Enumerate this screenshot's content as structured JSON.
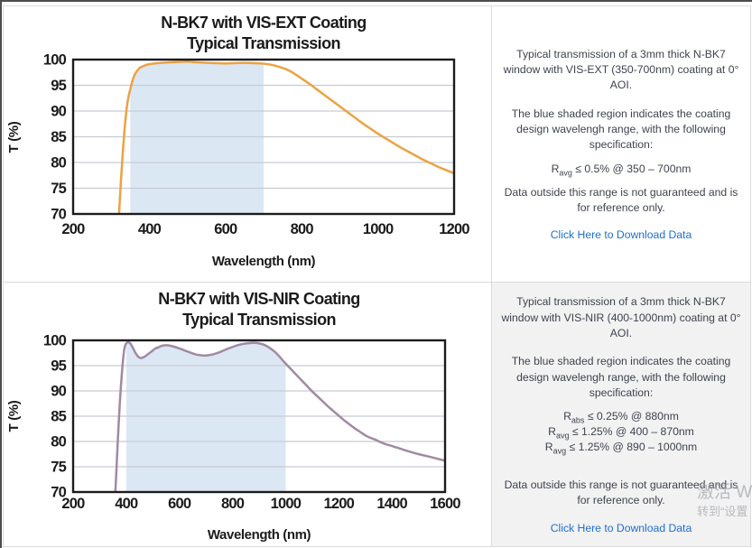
{
  "colors": {
    "band": "#dce7f4",
    "grid_line": "#c7ccd3",
    "frame": "#1c1c1c",
    "vis_ext_line": "#eda243",
    "vis_nir_line": "#a18aa3",
    "link": "#1d6fd2",
    "panel_gray_bg": "#f2f2f3"
  },
  "chart_data": [
    {
      "type": "line",
      "title_line1": "N-BK7 with VIS-EXT Coating",
      "title_line2": "Typical Transmission",
      "xlabel": "Wavelength (nm)",
      "ylabel": "T (%)",
      "series_name": "VIS-EXT coated N-BK7 transmission",
      "xlim": [
        200,
        1200
      ],
      "ylim": [
        70,
        100
      ],
      "x_ticks": [
        200,
        400,
        600,
        800,
        1000,
        1200
      ],
      "y_ticks": [
        70,
        75,
        80,
        85,
        90,
        95,
        100
      ],
      "grid": "horizontal",
      "design_band_nm": [
        350,
        700
      ],
      "points": [
        [
          318,
          67
        ],
        [
          322,
          72
        ],
        [
          326,
          77
        ],
        [
          330,
          81.5
        ],
        [
          334,
          85.5
        ],
        [
          338,
          88.8
        ],
        [
          342,
          91.3
        ],
        [
          346,
          93
        ],
        [
          350,
          94.2
        ],
        [
          355,
          95.7
        ],
        [
          360,
          96.8
        ],
        [
          365,
          97.5
        ],
        [
          370,
          98
        ],
        [
          375,
          98.4
        ],
        [
          380,
          98.6
        ],
        [
          390,
          98.9
        ],
        [
          400,
          99.1
        ],
        [
          420,
          99.3
        ],
        [
          440,
          99.4
        ],
        [
          460,
          99.5
        ],
        [
          480,
          99.55
        ],
        [
          500,
          99.6
        ],
        [
          520,
          99.5
        ],
        [
          540,
          99.4
        ],
        [
          560,
          99.35
        ],
        [
          580,
          99.3
        ],
        [
          600,
          99.25
        ],
        [
          620,
          99.3
        ],
        [
          640,
          99.35
        ],
        [
          660,
          99.35
        ],
        [
          680,
          99.3
        ],
        [
          700,
          99.2
        ],
        [
          720,
          99
        ],
        [
          740,
          98.6
        ],
        [
          760,
          98.1
        ],
        [
          780,
          97.3
        ],
        [
          800,
          96.3
        ],
        [
          820,
          95.3
        ],
        [
          840,
          94.2
        ],
        [
          860,
          93.1
        ],
        [
          880,
          92
        ],
        [
          900,
          90.9
        ],
        [
          920,
          89.8
        ],
        [
          940,
          88.7
        ],
        [
          960,
          87.6
        ],
        [
          980,
          86.6
        ],
        [
          1000,
          85.6
        ],
        [
          1020,
          84.7
        ],
        [
          1040,
          83.8
        ],
        [
          1060,
          82.9
        ],
        [
          1080,
          82.1
        ],
        [
          1100,
          81.3
        ],
        [
          1120,
          80.5
        ],
        [
          1140,
          79.8
        ],
        [
          1160,
          79.1
        ],
        [
          1180,
          78.5
        ],
        [
          1200,
          77.9
        ]
      ]
    },
    {
      "type": "line",
      "title_line1": "N-BK7 with VIS-NIR Coating",
      "title_line2": "Typical Transmission",
      "xlabel": "Wavelength (nm)",
      "ylabel": "T (%)",
      "series_name": "VIS-NIR coated N-BK7 transmission",
      "xlim": [
        200,
        1600
      ],
      "ylim": [
        70,
        100
      ],
      "x_ticks": [
        200,
        400,
        600,
        800,
        1000,
        1200,
        1400,
        1600
      ],
      "y_ticks": [
        70,
        75,
        80,
        85,
        90,
        95,
        100
      ],
      "grid": "horizontal",
      "design_band_nm": [
        400,
        1000
      ],
      "points": [
        [
          356,
          67
        ],
        [
          360,
          71
        ],
        [
          364,
          75.5
        ],
        [
          368,
          80
        ],
        [
          372,
          84
        ],
        [
          376,
          87.8
        ],
        [
          380,
          91
        ],
        [
          384,
          93.8
        ],
        [
          388,
          96.2
        ],
        [
          392,
          98
        ],
        [
          396,
          99
        ],
        [
          400,
          99.4
        ],
        [
          405,
          99.6
        ],
        [
          410,
          99.6
        ],
        [
          415,
          99.4
        ],
        [
          420,
          99
        ],
        [
          425,
          98.5
        ],
        [
          430,
          98
        ],
        [
          435,
          97.5
        ],
        [
          440,
          97.1
        ],
        [
          445,
          96.8
        ],
        [
          450,
          96.6
        ],
        [
          455,
          96.5
        ],
        [
          460,
          96.55
        ],
        [
          470,
          96.8
        ],
        [
          480,
          97.2
        ],
        [
          490,
          97.6
        ],
        [
          500,
          98
        ],
        [
          510,
          98.4
        ],
        [
          520,
          98.6
        ],
        [
          530,
          98.85
        ],
        [
          540,
          99
        ],
        [
          550,
          99.05
        ],
        [
          560,
          99
        ],
        [
          580,
          98.75
        ],
        [
          600,
          98.4
        ],
        [
          620,
          98
        ],
        [
          640,
          97.6
        ],
        [
          660,
          97.25
        ],
        [
          680,
          97.05
        ],
        [
          700,
          97
        ],
        [
          720,
          97.15
        ],
        [
          740,
          97.45
        ],
        [
          760,
          97.85
        ],
        [
          780,
          98.3
        ],
        [
          800,
          98.7
        ],
        [
          820,
          99.05
        ],
        [
          840,
          99.3
        ],
        [
          860,
          99.45
        ],
        [
          880,
          99.5
        ],
        [
          900,
          99.4
        ],
        [
          920,
          99.1
        ],
        [
          940,
          98.5
        ],
        [
          960,
          97.7
        ],
        [
          980,
          96.6
        ],
        [
          1000,
          95.4
        ],
        [
          1020,
          94.3
        ],
        [
          1040,
          93.2
        ],
        [
          1060,
          92.1
        ],
        [
          1080,
          91
        ],
        [
          1100,
          89.9
        ],
        [
          1120,
          88.9
        ],
        [
          1140,
          87.9
        ],
        [
          1160,
          86.9
        ],
        [
          1180,
          86
        ],
        [
          1200,
          85.1
        ],
        [
          1220,
          84.2
        ],
        [
          1240,
          83.4
        ],
        [
          1260,
          82.6
        ],
        [
          1280,
          81.9
        ],
        [
          1300,
          81.2
        ],
        [
          1320,
          80.7
        ],
        [
          1340,
          80.3
        ],
        [
          1360,
          79.8
        ],
        [
          1380,
          79.4
        ],
        [
          1400,
          79.1
        ],
        [
          1430,
          78.6
        ],
        [
          1460,
          78.1
        ],
        [
          1500,
          77.5
        ],
        [
          1540,
          77
        ],
        [
          1570,
          76.6
        ],
        [
          1600,
          76.2
        ]
      ]
    }
  ],
  "panels": [
    {
      "para1": "Typical transmission of a 3mm thick N-BK7 window with VIS-EXT (350-700nm) coating at 0° AOI.",
      "para2": "The blue shaded region indicates the coating design wavelengh range, with the following specification:",
      "specs": [
        {
          "base": "R",
          "sub": "avg",
          "rest": " ≤ 0.5% @ 350 – 700nm"
        }
      ],
      "para3": "Data outside this range is not guaranteed and is for reference only.",
      "link": "Click Here to Download Data"
    },
    {
      "para1": "Typical transmission of a 3mm thick N-BK7 window with VIS-NIR (400-1000nm) coating at 0° AOI.",
      "para2": "The blue shaded region indicates the coating design wavelengh range, with the following specification:",
      "specs": [
        {
          "base": "R",
          "sub": "abs",
          "rest": " ≤ 0.25% @ 880nm"
        },
        {
          "base": "R",
          "sub": "avg",
          "rest": " ≤ 1.25% @ 400 – 870nm"
        },
        {
          "base": "R",
          "sub": "avg",
          "rest": " ≤ 1.25% @ 890 – 1000nm"
        }
      ],
      "para3": "Data outside this range is not guaranteed and is for reference only.",
      "link": "Click Here to Download Data"
    }
  ],
  "watermark": {
    "line1": "激活 W",
    "line2": "转到“设置"
  }
}
